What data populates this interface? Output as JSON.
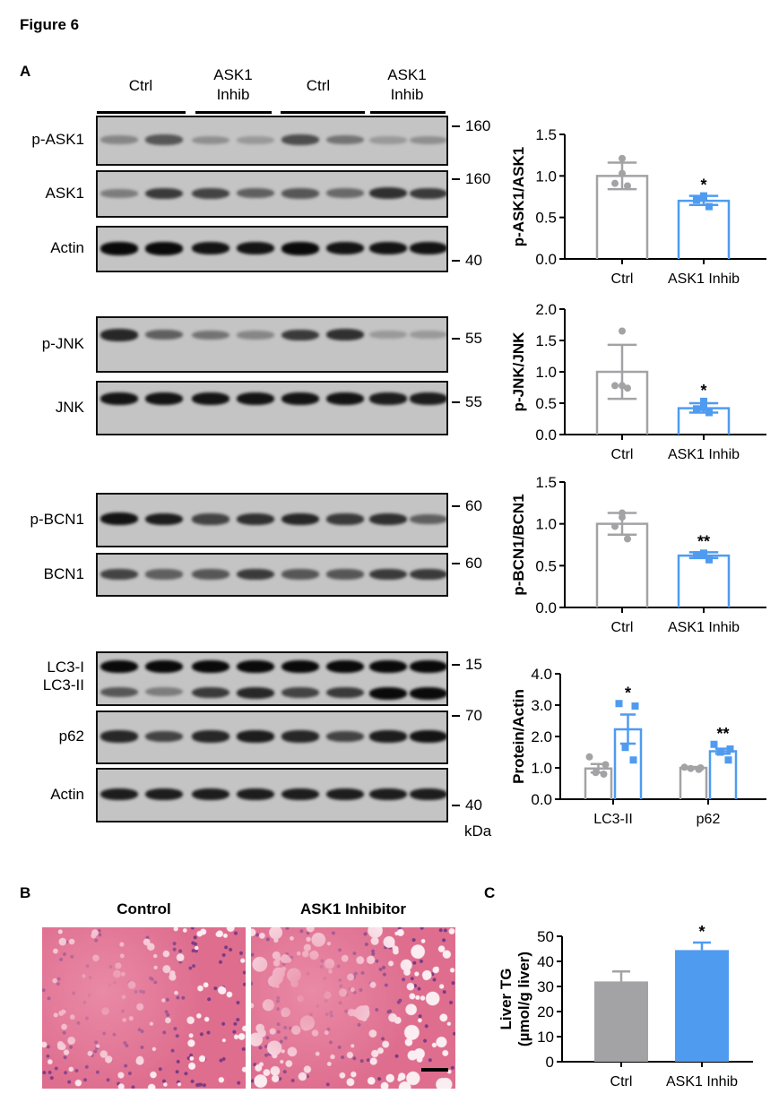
{
  "figure_title": "Figure 6",
  "panels": {
    "a": "A",
    "b": "B",
    "c": "C"
  },
  "lane_groups": [
    "Ctrl",
    "ASK1\nInhib",
    "Ctrl",
    "ASK1\nInhib"
  ],
  "lane_groups_text": [
    [
      "Ctrl"
    ],
    [
      "ASK1",
      "Inhib"
    ],
    [
      "Ctrl"
    ],
    [
      "ASK1",
      "Inhib"
    ]
  ],
  "blots": [
    {
      "label": "p-ASK1",
      "marker": "160",
      "bands": [
        0.35,
        0.6,
        0.3,
        0.25,
        0.65,
        0.45,
        0.25,
        0.3
      ]
    },
    {
      "label": "ASK1",
      "marker": "160",
      "bands": [
        0.4,
        0.75,
        0.7,
        0.55,
        0.6,
        0.5,
        0.8,
        0.75
      ]
    },
    {
      "label": "Actin",
      "marker": "40",
      "bands": [
        1,
        1,
        0.95,
        0.95,
        1,
        0.95,
        0.95,
        0.95
      ]
    },
    {
      "label": "p-JNK",
      "marker": "55",
      "bands": [
        0.85,
        0.55,
        0.45,
        0.35,
        0.75,
        0.8,
        0.25,
        0.25
      ]
    },
    {
      "label": "JNK",
      "marker": "55",
      "bands": [
        0.95,
        0.95,
        0.95,
        0.95,
        0.95,
        0.95,
        0.9,
        0.9
      ]
    },
    {
      "label": "p-BCN1",
      "marker": "60",
      "bands": [
        0.95,
        0.9,
        0.7,
        0.8,
        0.85,
        0.75,
        0.8,
        0.55
      ]
    },
    {
      "label": "BCN1",
      "marker": "60",
      "bands": [
        0.7,
        0.55,
        0.6,
        0.75,
        0.6,
        0.6,
        0.75,
        0.75
      ]
    },
    {
      "label": "LC3-I\nLC3-II",
      "labels": [
        "LC3-I",
        "LC3-II"
      ],
      "marker": "15",
      "bands": [
        1,
        1,
        1,
        1,
        1,
        1,
        1,
        1
      ],
      "bands2": [
        0.6,
        0.4,
        0.75,
        0.85,
        0.7,
        0.75,
        1,
        1
      ]
    },
    {
      "label": "p62",
      "marker": "70",
      "bands": [
        0.85,
        0.7,
        0.85,
        0.9,
        0.85,
        0.7,
        0.9,
        0.95
      ]
    },
    {
      "label": "Actin",
      "marker": "40",
      "bands": [
        0.9,
        0.9,
        0.9,
        0.9,
        0.9,
        0.9,
        0.9,
        0.9
      ]
    }
  ],
  "mw_unit": "kDa",
  "histology": {
    "titles": [
      "Control",
      "ASK1 Inhibitor"
    ]
  },
  "colors": {
    "ctrl": "#a3a3a6",
    "inhib": "#4f9bf0",
    "ctrl_fill": "#a3a3a6",
    "inhib_fill": "#4f9bf0"
  },
  "chart_data": [
    {
      "type": "bar",
      "ylabel": "p-ASK1/ASK1",
      "ylim": [
        0,
        1.5
      ],
      "yticks": [
        "0.0",
        "0.5",
        "1.0",
        "1.5"
      ],
      "categories": [
        "Ctrl",
        "ASK1 Inhib"
      ],
      "filled": false,
      "series": [
        {
          "name": "Ctrl",
          "mean": 1.0,
          "err": [
            0.84,
            1.16
          ],
          "points": [
            1.21,
            1.03,
            0.91,
            0.88
          ]
        },
        {
          "name": "ASK1 Inhib",
          "mean": 0.7,
          "err": [
            0.65,
            0.76
          ],
          "points": [
            0.74,
            0.76,
            0.71,
            0.63
          ],
          "sig": "*"
        }
      ]
    },
    {
      "type": "bar",
      "ylabel": "p-JNK/JNK",
      "ylim": [
        0,
        2.0
      ],
      "yticks": [
        "0.0",
        "0.5",
        "1.0",
        "1.5",
        "2.0"
      ],
      "categories": [
        "Ctrl",
        "ASK1 Inhib"
      ],
      "filled": false,
      "series": [
        {
          "name": "Ctrl",
          "mean": 1.0,
          "err": [
            0.57,
            1.43
          ],
          "points": [
            1.65,
            0.78,
            0.78,
            0.74
          ]
        },
        {
          "name": "ASK1 Inhib",
          "mean": 0.42,
          "err": [
            0.35,
            0.5
          ],
          "points": [
            0.43,
            0.53,
            0.41,
            0.35
          ],
          "sig": "*"
        }
      ]
    },
    {
      "type": "bar",
      "ylabel": "p-BCN1/BCN1",
      "ylim": [
        0,
        1.5
      ],
      "yticks": [
        "0.0",
        "0.5",
        "1.0",
        "1.5"
      ],
      "categories": [
        "Ctrl",
        "ASK1 Inhib"
      ],
      "filled": false,
      "series": [
        {
          "name": "Ctrl",
          "mean": 1.0,
          "err": [
            0.87,
            1.13
          ],
          "points": [
            1.13,
            1.08,
            0.97,
            0.82
          ]
        },
        {
          "name": "ASK1 Inhib",
          "mean": 0.62,
          "err": [
            0.59,
            0.66
          ],
          "points": [
            0.65,
            0.64,
            0.63,
            0.57
          ],
          "sig": "**"
        }
      ]
    },
    {
      "type": "bar",
      "ylabel": "Protein/Actin",
      "ylim": [
        0,
        4.0
      ],
      "yticks": [
        "0.0",
        "1.0",
        "2.0",
        "3.0",
        "4.0"
      ],
      "categories": [
        "LC3-II",
        "p62"
      ],
      "filled": false,
      "grouped": true,
      "series": [
        {
          "name": "Ctrl",
          "means": [
            0.98,
            1.0
          ],
          "errs": [
            [
              0.85,
              1.12
            ],
            [
              0.97,
              1.03
            ]
          ],
          "points": [
            [
              1.35,
              1.1,
              0.85,
              0.8
            ],
            [
              1.02,
              1.0,
              0.98,
              0.95
            ]
          ]
        },
        {
          "name": "ASK1 Inhib",
          "means": [
            2.23,
            1.53
          ],
          "errs": [
            [
              1.77,
              2.7
            ],
            [
              1.45,
              1.61
            ]
          ],
          "points": [
            [
              3.05,
              2.97,
              1.65,
              1.25
            ],
            [
              1.75,
              1.6,
              1.5,
              1.25
            ]
          ],
          "sigs": [
            "*",
            "**"
          ]
        }
      ]
    },
    {
      "type": "bar",
      "ylabel": "Liver TG",
      "ylabel2": "(µmol/g liver)",
      "ylim": [
        0,
        50
      ],
      "yticks": [
        "0",
        "10",
        "20",
        "30",
        "40",
        "50"
      ],
      "categories": [
        "Ctrl",
        "ASK1 Inhib"
      ],
      "filled": true,
      "series": [
        {
          "name": "Ctrl",
          "mean": 32,
          "err": [
            32,
            36
          ]
        },
        {
          "name": "ASK1 Inhib",
          "mean": 44.5,
          "err": [
            44.5,
            47.5
          ],
          "sig": "*"
        }
      ]
    }
  ]
}
